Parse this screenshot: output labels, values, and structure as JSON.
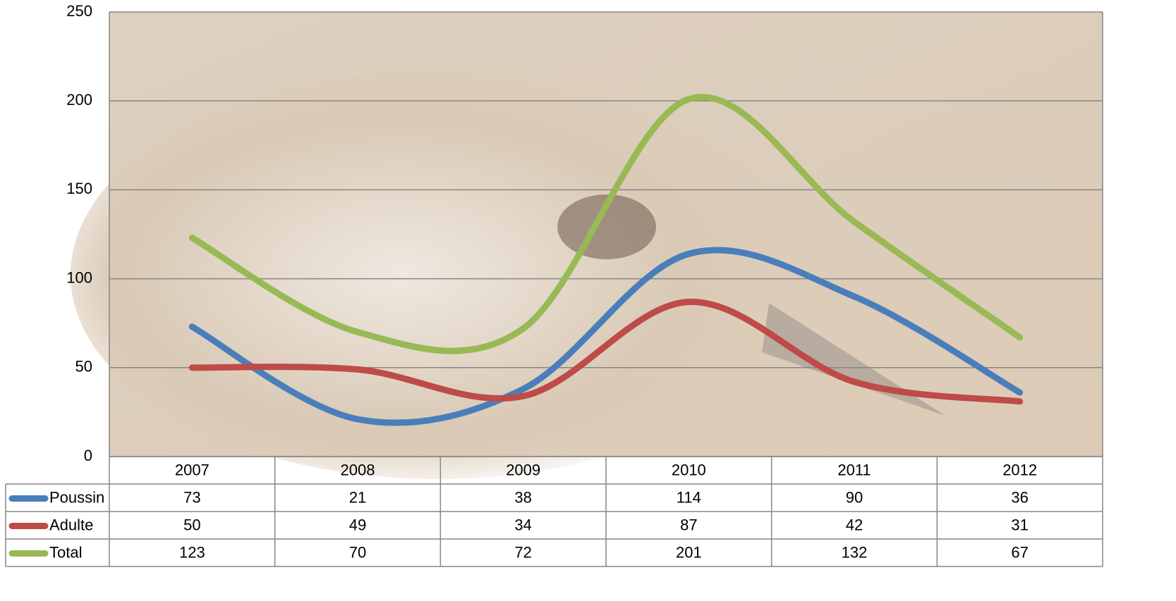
{
  "chart_data": {
    "type": "line",
    "smooth": true,
    "grid": true,
    "categories": [
      "2007",
      "2008",
      "2009",
      "2010",
      "2011",
      "2012"
    ],
    "series": [
      {
        "name": "Poussin",
        "color": "#4a7ebb",
        "values": [
          73,
          21,
          38,
          114,
          90,
          36
        ]
      },
      {
        "name": "Adulte",
        "color": "#be4b48",
        "values": [
          50,
          49,
          34,
          87,
          42,
          31
        ]
      },
      {
        "name": "Total",
        "color": "#98b954",
        "values": [
          123,
          70,
          72,
          201,
          132,
          67
        ]
      }
    ],
    "ylim": [
      0,
      250
    ],
    "yticks": [
      0,
      50,
      100,
      150,
      200,
      250
    ]
  }
}
